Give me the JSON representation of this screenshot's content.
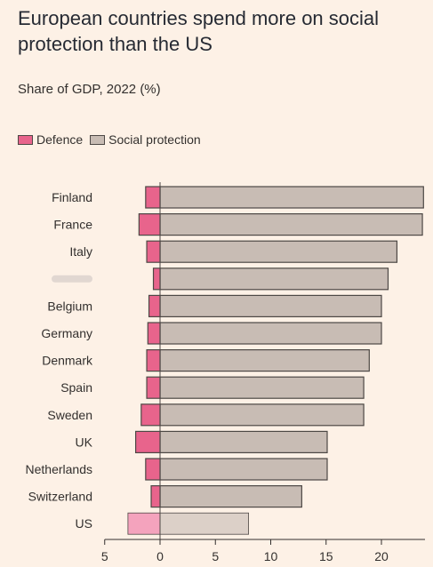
{
  "title": "European countries spend more on social protection than the US",
  "subtitle": "Share of GDP, 2022 (%)",
  "legend": [
    {
      "label": "Defence",
      "color": "#e8648c"
    },
    {
      "label": "Social protection",
      "color": "#c8bcb4"
    }
  ],
  "chart_data": {
    "type": "bar",
    "orientation": "horizontal",
    "categories": [
      "Finland",
      "France",
      "Italy",
      "",
      "Belgium",
      "Germany",
      "Denmark",
      "Spain",
      "Sweden",
      "UK",
      "Netherlands",
      "Switzerland",
      "US"
    ],
    "series": [
      {
        "name": "Defence",
        "values": [
          -1.3,
          -1.9,
          -1.2,
          -0.6,
          -1.0,
          -1.1,
          -1.2,
          -1.2,
          -1.7,
          -2.2,
          -1.3,
          -0.8,
          -2.9
        ]
      },
      {
        "name": "Social protection",
        "values": [
          23.8,
          23.7,
          21.4,
          20.6,
          20.0,
          20.0,
          18.9,
          18.4,
          18.4,
          15.1,
          15.1,
          12.8,
          8.0
        ]
      }
    ],
    "highlight_category": "US",
    "x_ticks": [
      "5",
      "0",
      "5",
      "10",
      "15",
      "20"
    ],
    "x_tick_values": [
      -5,
      0,
      5,
      10,
      15,
      20
    ],
    "xlim": [
      -5,
      24
    ],
    "xlabel": "",
    "ylabel": "",
    "grid": false,
    "legend_position": "top-left",
    "colors": {
      "defence": "#e8648c",
      "social": "#c8bcb4",
      "defence_highlight": "#f4a3bd",
      "social_highlight": "#dcd0c8",
      "bar_stroke": "#4d4845"
    }
  }
}
